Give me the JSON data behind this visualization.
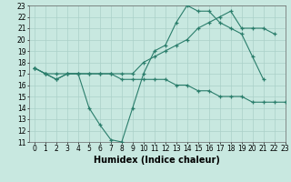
{
  "line1_x": [
    0,
    1,
    2,
    3,
    4,
    5,
    6,
    7,
    8,
    9,
    10,
    11,
    12,
    13,
    14,
    15,
    16,
    17,
    18,
    19,
    20,
    21
  ],
  "line1_y": [
    17.5,
    17.0,
    16.5,
    17.0,
    17.0,
    14.0,
    12.5,
    11.2,
    11.0,
    14.0,
    17.0,
    19.0,
    19.5,
    21.5,
    23.0,
    22.5,
    22.5,
    21.5,
    21.0,
    20.5,
    18.5,
    16.5
  ],
  "line2_x": [
    0,
    1,
    2,
    3,
    4,
    5,
    6,
    7,
    8,
    9,
    10,
    11,
    12,
    13,
    14,
    15,
    16,
    17,
    18,
    19,
    20,
    21,
    22
  ],
  "line2_y": [
    17.5,
    17.0,
    17.0,
    17.0,
    17.0,
    17.0,
    17.0,
    17.0,
    17.0,
    17.0,
    18.0,
    18.5,
    19.0,
    19.5,
    20.0,
    21.0,
    21.5,
    22.0,
    22.5,
    21.0,
    21.0,
    21.0,
    20.5
  ],
  "line3_x": [
    0,
    1,
    2,
    3,
    4,
    5,
    6,
    7,
    8,
    9,
    10,
    11,
    12,
    13,
    14,
    15,
    16,
    17,
    18,
    19,
    20,
    21,
    22,
    23
  ],
  "line3_y": [
    17.5,
    17.0,
    16.5,
    17.0,
    17.0,
    17.0,
    17.0,
    17.0,
    16.5,
    16.5,
    16.5,
    16.5,
    16.5,
    16.0,
    16.0,
    15.5,
    15.5,
    15.0,
    15.0,
    15.0,
    14.5,
    14.5,
    14.5,
    14.5
  ],
  "color": "#2a7d6b",
  "bg_color": "#c8e8e0",
  "grid_color": "#aad0c8",
  "xlabel": "Humidex (Indice chaleur)",
  "xlim": [
    -0.5,
    23
  ],
  "ylim": [
    11,
    23
  ],
  "xticks": [
    0,
    1,
    2,
    3,
    4,
    5,
    6,
    7,
    8,
    9,
    10,
    11,
    12,
    13,
    14,
    15,
    16,
    17,
    18,
    19,
    20,
    21,
    22,
    23
  ],
  "yticks": [
    11,
    12,
    13,
    14,
    15,
    16,
    17,
    18,
    19,
    20,
    21,
    22,
    23
  ],
  "xlabel_fontsize": 7,
  "tick_fontsize": 5.5
}
